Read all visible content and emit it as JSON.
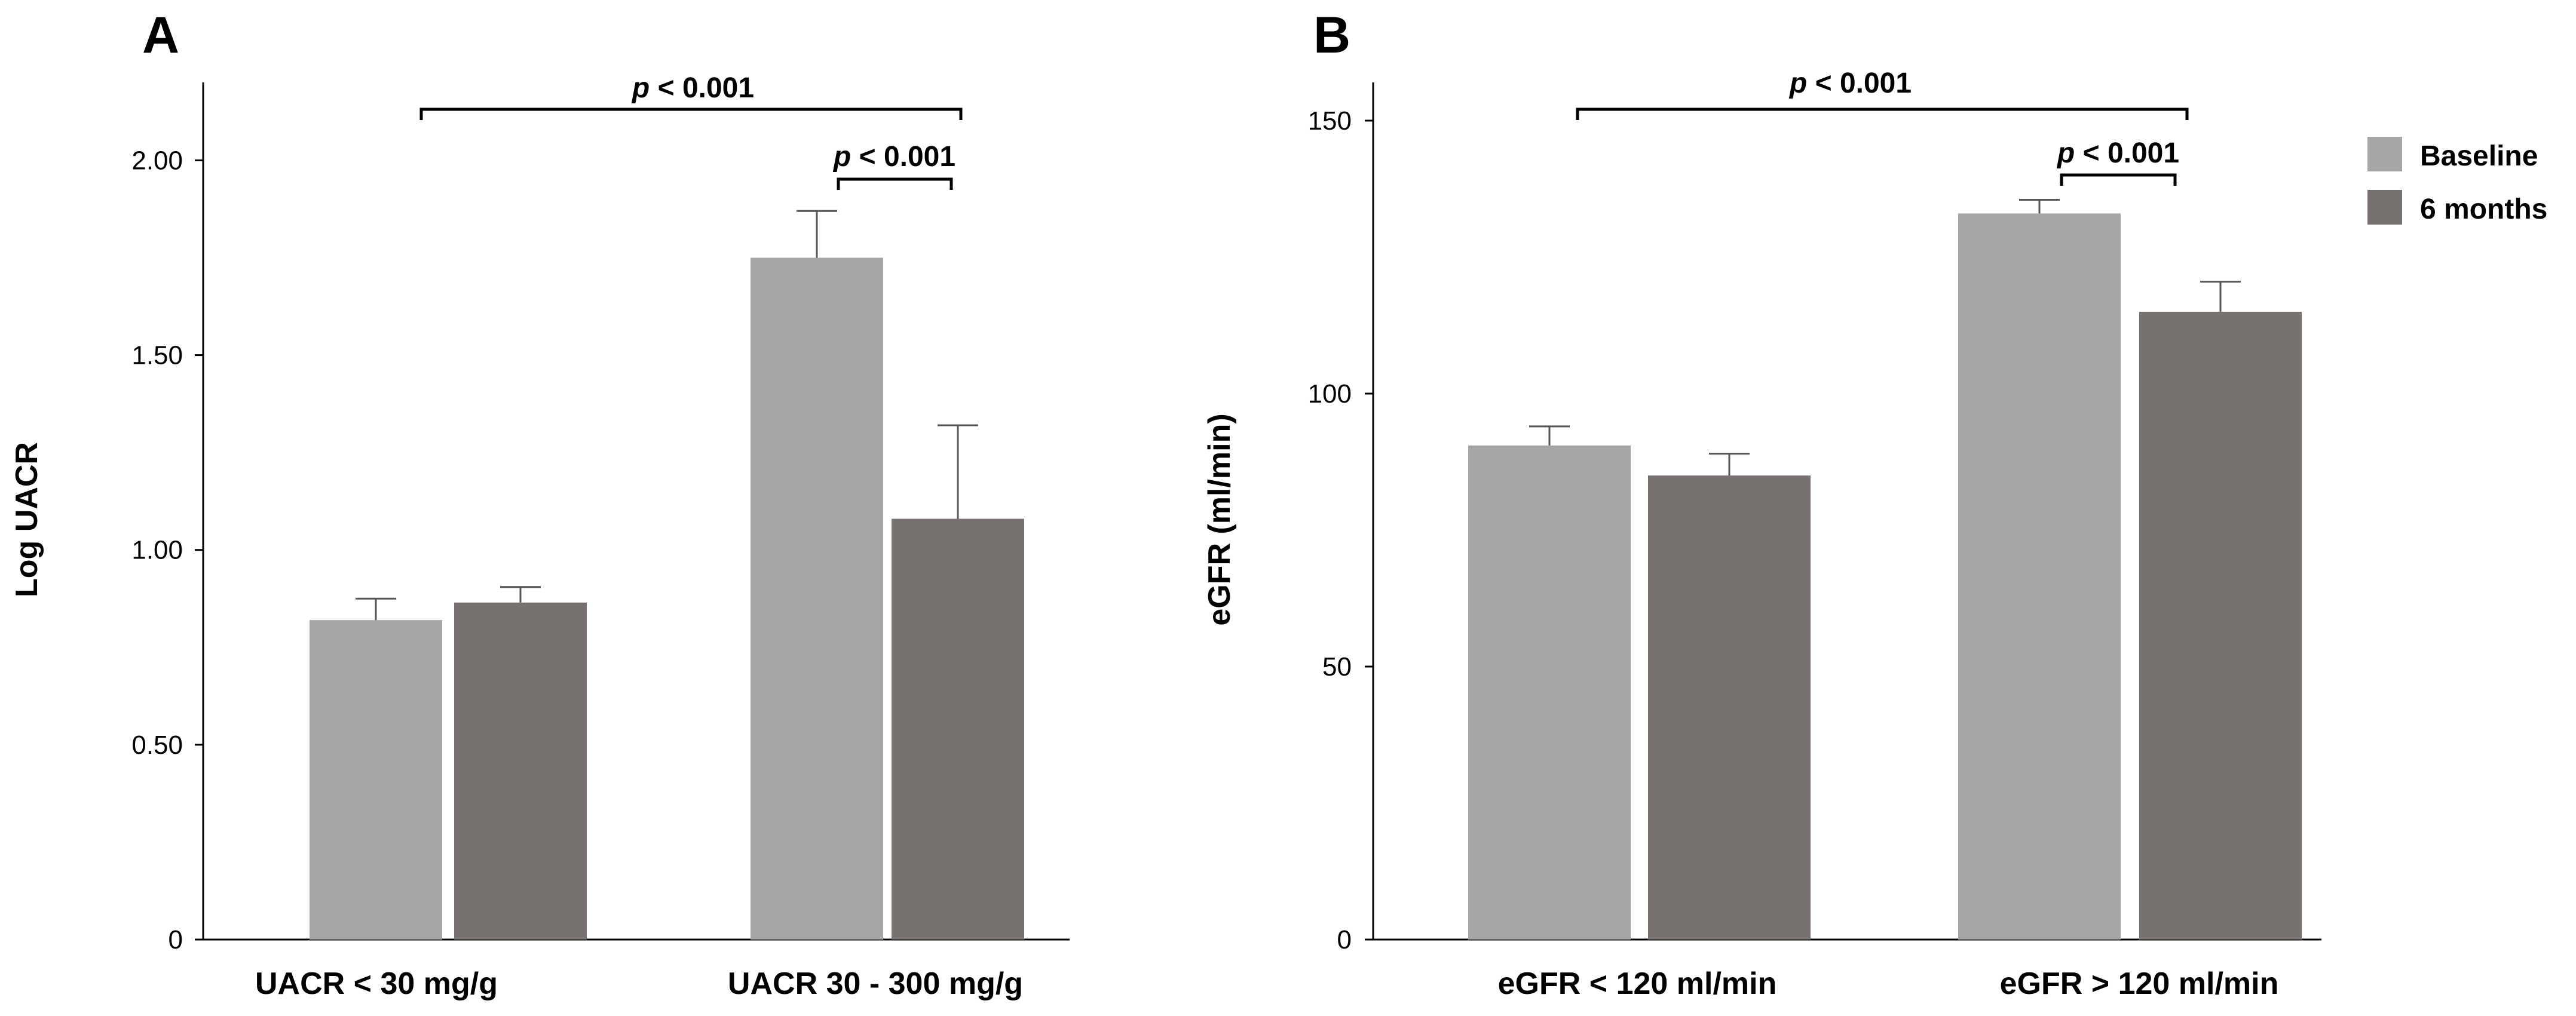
{
  "chart_data": [
    {
      "panel": "A",
      "type": "bar",
      "ylabel": "Log UACR",
      "xlabel": "",
      "ylim": [
        0,
        2.2
      ],
      "yticks": [
        "0",
        "0.50",
        "1.00",
        "1.50",
        "2.00"
      ],
      "ytick_values": [
        0,
        0.5,
        1.0,
        1.5,
        2.0
      ],
      "categories": [
        "UACR < 30 mg/g",
        "UACR 30 - 300 mg/g"
      ],
      "series": [
        {
          "name": "Baseline",
          "color": "#a6a6a6",
          "values": [
            0.82,
            1.75
          ],
          "errors": [
            0.055,
            0.12
          ]
        },
        {
          "name": "6 months",
          "color": "#777270",
          "values": [
            0.865,
            1.08
          ],
          "errors": [
            0.04,
            0.24
          ]
        }
      ],
      "annotations": [
        {
          "text_italic": "p",
          "text_rest": " < 0.001",
          "span": "between groups"
        },
        {
          "text_italic": "p",
          "text_rest": " < 0.001",
          "span": "within UACR 30 - 300 mg/g"
        }
      ]
    },
    {
      "panel": "B",
      "type": "bar",
      "ylabel": "eGFR (ml/min)",
      "xlabel": "",
      "ylim": [
        0,
        157
      ],
      "yticks": [
        "0",
        "50",
        "100",
        "150"
      ],
      "ytick_values": [
        0,
        50,
        100,
        150
      ],
      "categories": [
        "eGFR < 120 ml/min",
        "eGFR > 120 ml/min"
      ],
      "series": [
        {
          "name": "Baseline",
          "color": "#a6a6a6",
          "values": [
            90.5,
            133
          ],
          "errors": [
            3.5,
            2.5
          ]
        },
        {
          "name": "6 months",
          "color": "#777270",
          "values": [
            85,
            115
          ],
          "errors": [
            4,
            5.5
          ]
        }
      ],
      "annotations": [
        {
          "text_italic": "p",
          "text_rest": " < 0.001",
          "span": "between groups"
        },
        {
          "text_italic": "p",
          "text_rest": " < 0.001",
          "span": "within eGFR > 120 ml/min"
        }
      ],
      "legend": {
        "position": "top-right",
        "items": [
          {
            "label": "Baseline",
            "color": "#a6a6a6"
          },
          {
            "label": "6 months",
            "color": "#777270"
          }
        ]
      }
    }
  ]
}
